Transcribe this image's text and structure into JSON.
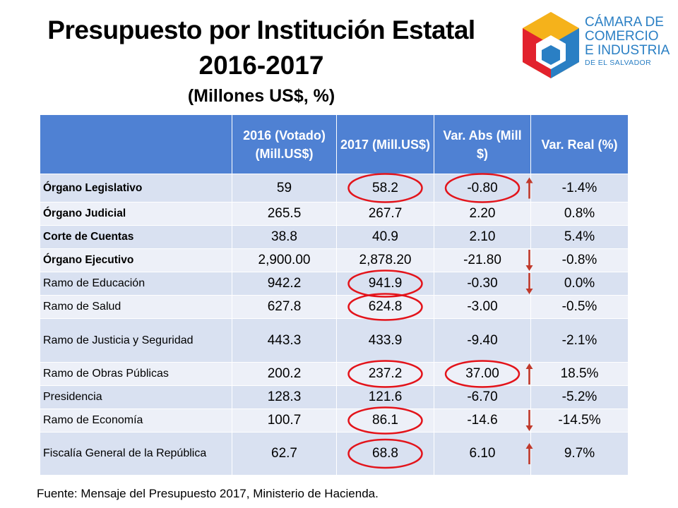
{
  "title": {
    "line1": "Presupuesto por Institución Estatal",
    "line2": "2016-2017",
    "line3": "(Millones US$, %)"
  },
  "logo": {
    "line1": "CÁMARA DE",
    "line2": "COMERCIO",
    "line3": "E INDUSTRIA",
    "line4": "DE EL SALVADOR"
  },
  "table": {
    "headers": [
      "",
      "2016 (Votado) (Mill.US$)",
      "2017 (Mill.US$)",
      "Var. Abs (Mill $)",
      "Var. Real (%)"
    ],
    "rows": [
      {
        "label": "Órgano Legislativo",
        "bold": true,
        "v2016": "59",
        "v2017": "58.2",
        "abs": "-0.80",
        "real": "-1.4%"
      },
      {
        "label": "Órgano Judicial",
        "bold": true,
        "v2016": "265.5",
        "v2017": "267.7",
        "abs": "2.20",
        "real": "0.8%"
      },
      {
        "label": "Corte de Cuentas",
        "bold": true,
        "v2016": "38.8",
        "v2017": "40.9",
        "abs": "2.10",
        "real": "5.4%"
      },
      {
        "label": "Órgano Ejecutivo",
        "bold": true,
        "v2016": "2,900.00",
        "v2017": "2,878.20",
        "abs": "-21.80",
        "real": "-0.8%"
      },
      {
        "label": "Ramo de Educación",
        "bold": false,
        "v2016": "942.2",
        "v2017": "941.9",
        "abs": "-0.30",
        "real": "0.0%"
      },
      {
        "label": "Ramo de Salud",
        "bold": false,
        "v2016": "627.8",
        "v2017": "624.8",
        "abs": "-3.00",
        "real": "-0.5%"
      },
      {
        "label": "Ramo de Justicia y Seguridad",
        "bold": false,
        "v2016": "443.3",
        "v2017": "433.9",
        "abs": "-9.40",
        "real": "-2.1%"
      },
      {
        "label": "Ramo de Obras Públicas",
        "bold": false,
        "v2016": "200.2",
        "v2017": "237.2",
        "abs": "37.00",
        "real": "18.5%"
      },
      {
        "label": "Presidencia",
        "bold": false,
        "v2016": "128.3",
        "v2017": "121.6",
        "abs": "-6.70",
        "real": "-5.2%"
      },
      {
        "label": "Ramo de Economía",
        "bold": false,
        "v2016": "100.7",
        "v2017": "86.1",
        "abs": "-14.6",
        "real": "-14.5%"
      },
      {
        "label": "Fiscalía General de la República",
        "bold": false,
        "v2016": "62.7",
        "v2017": "68.8",
        "abs": "6.10",
        "real": "9.7%"
      }
    ]
  },
  "annotations": {
    "circled_2017_rows": [
      0,
      4,
      5,
      7,
      9,
      10
    ],
    "circled_abs_rows": [
      0,
      7
    ],
    "arrows": [
      {
        "row": 0,
        "direction": "up"
      },
      {
        "row": 3,
        "direction": "down"
      },
      {
        "row": 4,
        "direction": "down"
      },
      {
        "row": 7,
        "direction": "up"
      },
      {
        "row": 9,
        "direction": "down"
      },
      {
        "row": 10,
        "direction": "up"
      }
    ],
    "color": "#e3141b"
  },
  "source": "Fuente: Mensaje del Presupuesto 2017,  Ministerio de Hacienda.",
  "colors": {
    "header_bg": "#4f81d3",
    "row_odd": "#d9e1f1",
    "row_even": "#edf0f8",
    "logo_text": "#2a7fc4"
  }
}
